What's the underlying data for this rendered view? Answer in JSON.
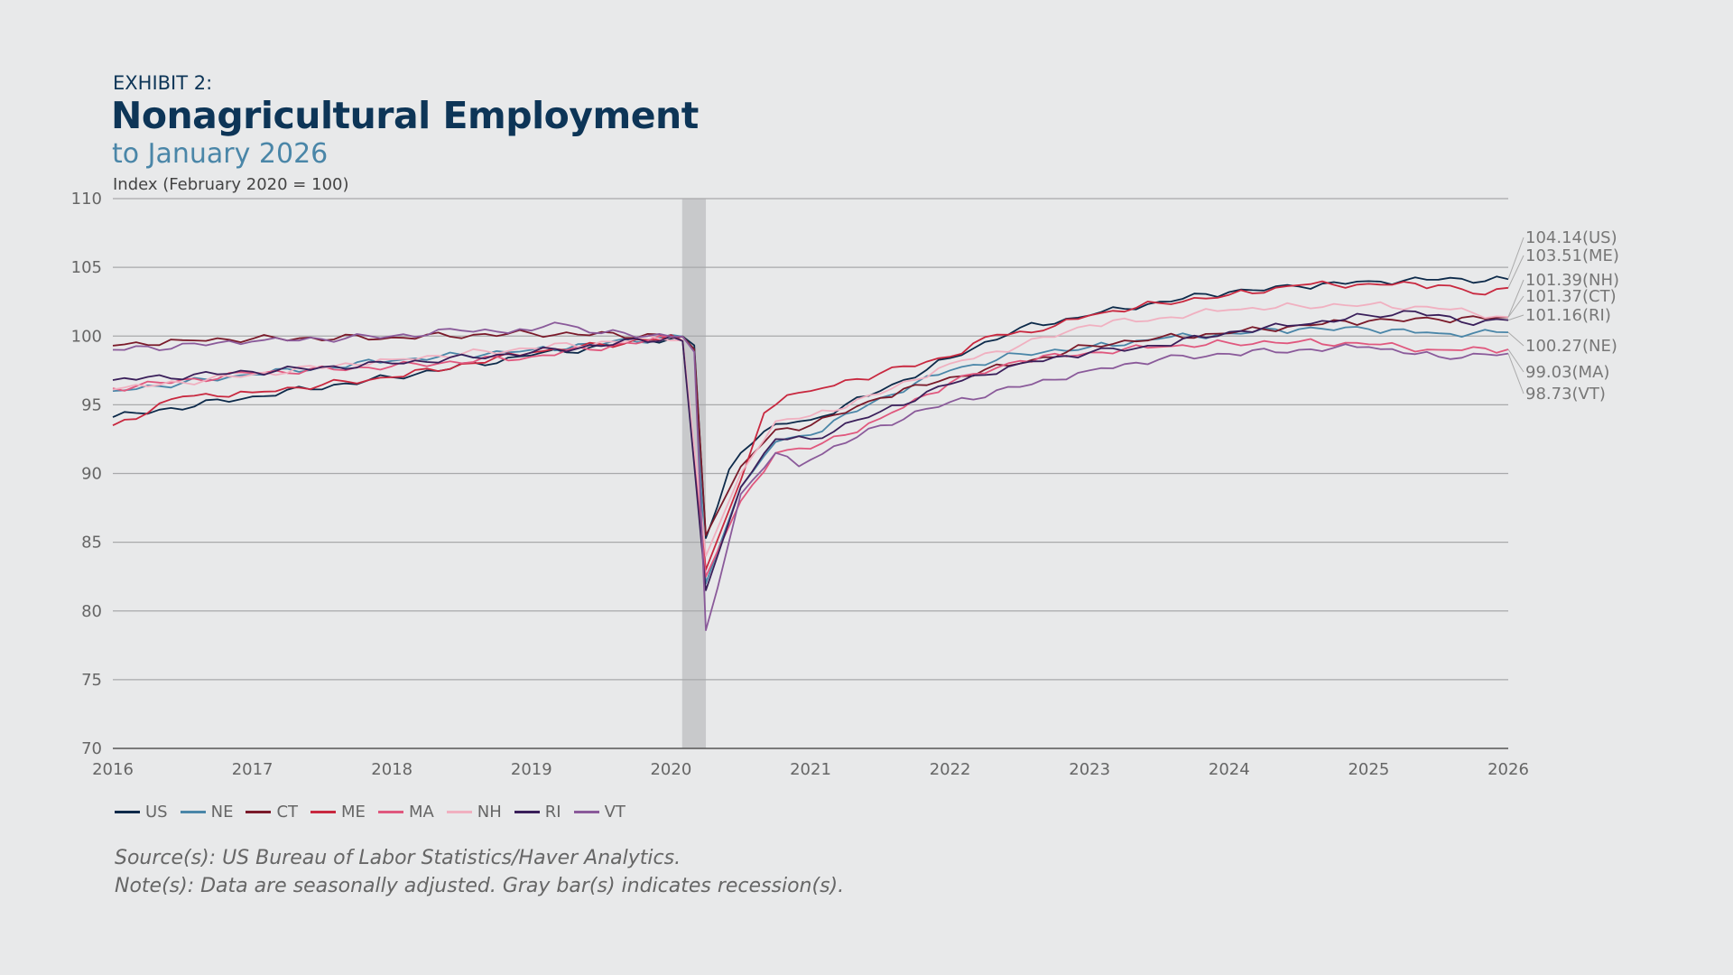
{
  "header": {
    "exhibit": "EXHIBIT 2:",
    "title": "Nonagricultural Employment",
    "subtitle": "to January 2026",
    "index_label": "Index (February 2020 = 100)"
  },
  "footer": {
    "source": "Source(s): US Bureau of Labor Statistics/Haver Analytics.",
    "note": "Note(s): Data are seasonally adjusted. Gray bar(s) indicates recession(s)."
  },
  "chart_data": {
    "type": "line",
    "title": "Nonagricultural Employment",
    "ylabel": "Index (February 2020 = 100)",
    "xlim": [
      2016,
      2026
    ],
    "ylim": [
      70,
      110
    ],
    "yticks": [
      "70",
      "75",
      "80",
      "85",
      "90",
      "95",
      "100",
      "105",
      "110"
    ],
    "xticks": [
      "2016",
      "2017",
      "2018",
      "2019",
      "2020",
      "2021",
      "2022",
      "2023",
      "2024",
      "2025",
      "2026"
    ],
    "grid": true,
    "legend_placement": "bottom-left",
    "recession": [
      2020.08,
      2020.25
    ],
    "series": [
      {
        "name": "US",
        "color": "#0d2a4a",
        "end_label": "104.14(US)",
        "points": [
          [
            2016,
            94.1
          ],
          [
            2017,
            95.6
          ],
          [
            2018,
            97.0
          ],
          [
            2019,
            98.6
          ],
          [
            2020.08,
            100
          ],
          [
            2020.17,
            99.3
          ],
          [
            2020.25,
            85.3
          ],
          [
            2020.33,
            87.5
          ],
          [
            2020.42,
            90.4
          ],
          [
            2020.5,
            91.5
          ],
          [
            2020.75,
            93.6
          ],
          [
            2021,
            93.9
          ],
          [
            2021.5,
            96.0
          ],
          [
            2022,
            98.4
          ],
          [
            2022.5,
            100.6
          ],
          [
            2023,
            101.5
          ],
          [
            2023.5,
            102.5
          ],
          [
            2024,
            103.2
          ],
          [
            2024.5,
            103.6
          ],
          [
            2025,
            104.0
          ],
          [
            2025.5,
            104.1
          ],
          [
            2026,
            104.14
          ]
        ]
      },
      {
        "name": "NE",
        "color": "#4a86a8",
        "end_label": "100.27(NE)",
        "points": [
          [
            2016,
            96.0
          ],
          [
            2017,
            97.2
          ],
          [
            2018,
            98.2
          ],
          [
            2019,
            99.0
          ],
          [
            2020.08,
            100
          ],
          [
            2020.17,
            99.0
          ],
          [
            2020.25,
            82.0
          ],
          [
            2020.5,
            89
          ],
          [
            2020.75,
            92.3
          ],
          [
            2021,
            92.8
          ],
          [
            2021.5,
            95.5
          ],
          [
            2022,
            97.5
          ],
          [
            2022.5,
            98.7
          ],
          [
            2023,
            99.2
          ],
          [
            2023.5,
            99.8
          ],
          [
            2024,
            100.2
          ],
          [
            2024.5,
            100.5
          ],
          [
            2025,
            100.5
          ],
          [
            2025.5,
            100.2
          ],
          [
            2026,
            100.27
          ]
        ]
      },
      {
        "name": "CT",
        "color": "#7a1a2a",
        "end_label": "101.37(CT)",
        "points": [
          [
            2016,
            99.3
          ],
          [
            2016.5,
            99.7
          ],
          [
            2017,
            99.8
          ],
          [
            2018,
            99.9
          ],
          [
            2019,
            100.2
          ],
          [
            2020.08,
            100
          ],
          [
            2020.17,
            99.0
          ],
          [
            2020.25,
            85.5
          ],
          [
            2020.5,
            90.5
          ],
          [
            2020.75,
            93.2
          ],
          [
            2021,
            93.5
          ],
          [
            2021.5,
            95.5
          ],
          [
            2022,
            97.0
          ],
          [
            2022.5,
            98.0
          ],
          [
            2023,
            99.3
          ],
          [
            2023.5,
            99.9
          ],
          [
            2024,
            100.2
          ],
          [
            2024.5,
            100.8
          ],
          [
            2025,
            101.1
          ],
          [
            2025.5,
            101.2
          ],
          [
            2026,
            101.37
          ]
        ]
      },
      {
        "name": "ME",
        "color": "#c8283f",
        "end_label": "103.51(ME)",
        "points": [
          [
            2016,
            93.5
          ],
          [
            2016.5,
            95.6
          ],
          [
            2017,
            95.9
          ],
          [
            2018,
            97.0
          ],
          [
            2019,
            98.8
          ],
          [
            2020.08,
            100
          ],
          [
            2020.25,
            83
          ],
          [
            2020.5,
            89.5
          ],
          [
            2020.67,
            94.5
          ],
          [
            2020.83,
            95.7
          ],
          [
            2021,
            96
          ],
          [
            2021.5,
            97.3
          ],
          [
            2022,
            98.5
          ],
          [
            2022.33,
            100.1
          ],
          [
            2022.67,
            100.4
          ],
          [
            2023,
            101.5
          ],
          [
            2023.5,
            102.4
          ],
          [
            2024,
            103
          ],
          [
            2024.5,
            103.7
          ],
          [
            2025,
            103.8
          ],
          [
            2025.5,
            103.7
          ],
          [
            2025.83,
            103.0
          ],
          [
            2026,
            103.51
          ]
        ]
      },
      {
        "name": "MA",
        "color": "#e0587e",
        "end_label": "99.03(MA)",
        "points": [
          [
            2016,
            96.2
          ],
          [
            2017,
            97.3
          ],
          [
            2018,
            97.8
          ],
          [
            2019,
            98.5
          ],
          [
            2020.08,
            100
          ],
          [
            2020.25,
            82.5
          ],
          [
            2020.5,
            88
          ],
          [
            2020.75,
            91.5
          ],
          [
            2021,
            91.8
          ],
          [
            2021.5,
            94
          ],
          [
            2022,
            96.6
          ],
          [
            2022.5,
            98.2
          ],
          [
            2023,
            98.8
          ],
          [
            2023.5,
            99.2
          ],
          [
            2024,
            99.5
          ],
          [
            2024.5,
            99.6
          ],
          [
            2025,
            99.4
          ],
          [
            2025.5,
            99.0
          ],
          [
            2026,
            99.03
          ]
        ]
      },
      {
        "name": "NH",
        "color": "#f0b0c0",
        "end_label": "101.39(NH)",
        "points": [
          [
            2016,
            96.1
          ],
          [
            2017,
            97.2
          ],
          [
            2018,
            98.3
          ],
          [
            2019,
            99.1
          ],
          [
            2020.08,
            100
          ],
          [
            2020.25,
            84
          ],
          [
            2020.5,
            90
          ],
          [
            2020.75,
            93.8
          ],
          [
            2021,
            94.2
          ],
          [
            2021.5,
            95.8
          ],
          [
            2022,
            98
          ],
          [
            2022.5,
            99.3
          ],
          [
            2023,
            100.8
          ],
          [
            2023.5,
            101.3
          ],
          [
            2024,
            101.9
          ],
          [
            2024.5,
            102.2
          ],
          [
            2025,
            102.3
          ],
          [
            2025.5,
            102.0
          ],
          [
            2026,
            101.39
          ]
        ]
      },
      {
        "name": "RI",
        "color": "#3a1f5a",
        "end_label": "101.16(RI)",
        "points": [
          [
            2016,
            96.8
          ],
          [
            2017,
            97.4
          ],
          [
            2018,
            98.0
          ],
          [
            2019,
            98.8
          ],
          [
            2020.08,
            100
          ],
          [
            2020.25,
            81.5
          ],
          [
            2020.5,
            89
          ],
          [
            2020.75,
            92.5
          ],
          [
            2021,
            92.5
          ],
          [
            2021.5,
            94.5
          ],
          [
            2022,
            96.5
          ],
          [
            2022.5,
            98.0
          ],
          [
            2023,
            98.8
          ],
          [
            2023.5,
            99.3
          ],
          [
            2024,
            100.3
          ],
          [
            2024.5,
            100.8
          ],
          [
            2025,
            101.5
          ],
          [
            2025.33,
            101.8
          ],
          [
            2025.67,
            101.0
          ],
          [
            2026,
            101.16
          ]
        ]
      },
      {
        "name": "VT",
        "color": "#8a5a9a",
        "end_label": "98.73(VT)",
        "points": [
          [
            2016,
            99.0
          ],
          [
            2017,
            99.6
          ],
          [
            2018,
            100.0
          ],
          [
            2018.5,
            100.4
          ],
          [
            2019,
            100.4
          ],
          [
            2019.17,
            101.0
          ],
          [
            2019.5,
            100.2
          ],
          [
            2020.08,
            100
          ],
          [
            2020.17,
            98.8
          ],
          [
            2020.25,
            78.6
          ],
          [
            2020.33,
            81.5
          ],
          [
            2020.5,
            88.5
          ],
          [
            2020.75,
            91.5
          ],
          [
            2020.92,
            90.5
          ],
          [
            2021,
            91
          ],
          [
            2021.5,
            93.5
          ],
          [
            2022,
            95.2
          ],
          [
            2022.5,
            96.3
          ],
          [
            2023,
            97.5
          ],
          [
            2023.5,
            98.3
          ],
          [
            2024,
            98.7
          ],
          [
            2024.5,
            99.0
          ],
          [
            2025,
            99.2
          ],
          [
            2025.5,
            98.5
          ],
          [
            2026,
            98.73
          ]
        ]
      }
    ]
  }
}
